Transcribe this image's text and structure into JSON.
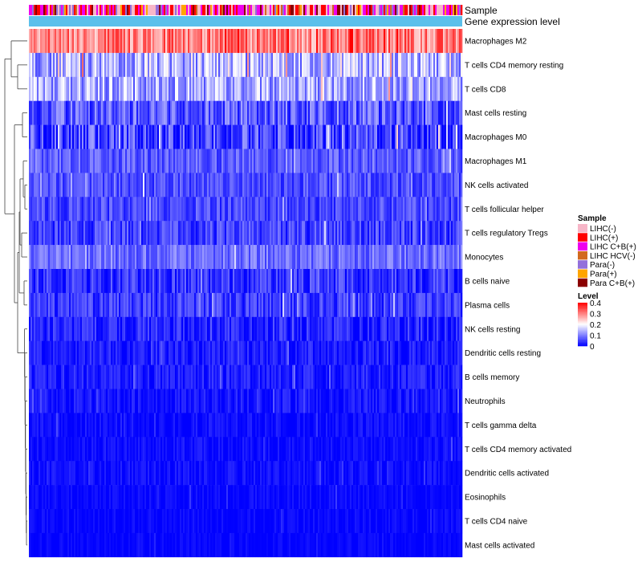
{
  "chart_data": {
    "type": "heatmap",
    "title": "",
    "annotation_tracks": [
      "Sample",
      "Gene expression level"
    ],
    "rows": [
      {
        "name": "Macrophages M2",
        "mean": 0.3,
        "spread": 0.07
      },
      {
        "name": "T cells CD4 memory resting",
        "mean": 0.14,
        "spread": 0.08
      },
      {
        "name": "T cells CD8",
        "mean": 0.13,
        "spread": 0.07
      },
      {
        "name": "Mast cells resting",
        "mean": 0.07,
        "spread": 0.06
      },
      {
        "name": "Macrophages M0",
        "mean": 0.05,
        "spread": 0.07
      },
      {
        "name": "Macrophages M1",
        "mean": 0.07,
        "spread": 0.04
      },
      {
        "name": "NK cells activated",
        "mean": 0.06,
        "spread": 0.04
      },
      {
        "name": "T cells follicular helper",
        "mean": 0.055,
        "spread": 0.04
      },
      {
        "name": "T cells regulatory  Tregs",
        "mean": 0.05,
        "spread": 0.045
      },
      {
        "name": "Monocytes",
        "mean": 0.085,
        "spread": 0.04
      },
      {
        "name": "B cells naive",
        "mean": 0.04,
        "spread": 0.045
      },
      {
        "name": "Plasma cells",
        "mean": 0.045,
        "spread": 0.04
      },
      {
        "name": "NK cells resting",
        "mean": 0.025,
        "spread": 0.04
      },
      {
        "name": "Dendritic cells resting",
        "mean": 0.02,
        "spread": 0.03
      },
      {
        "name": "B cells memory",
        "mean": 0.02,
        "spread": 0.03
      },
      {
        "name": "Neutrophils",
        "mean": 0.015,
        "spread": 0.025
      },
      {
        "name": "T cells gamma delta",
        "mean": 0.01,
        "spread": 0.02
      },
      {
        "name": "T cells CD4 memory activated",
        "mean": 0.008,
        "spread": 0.02
      },
      {
        "name": "Dendritic cells activated",
        "mean": 0.01,
        "spread": 0.02
      },
      {
        "name": "Eosinophils",
        "mean": 0.006,
        "spread": 0.015
      },
      {
        "name": "T cells CD4 naive",
        "mean": 0.005,
        "spread": 0.015
      },
      {
        "name": "Mast cells activated",
        "mean": 0.004,
        "spread": 0.012
      }
    ],
    "color_scale": {
      "title": "Level",
      "min": 0,
      "max": 0.4,
      "stops": [
        {
          "value": 0,
          "color": "#0000ff"
        },
        {
          "value": 0.2,
          "color": "#ffffff"
        },
        {
          "value": 0.4,
          "color": "#ff0000"
        }
      ],
      "tick_labels": [
        "0.4",
        "0.3",
        "0.2",
        "0.1",
        "0"
      ]
    },
    "sample_legend": {
      "title": "Sample",
      "entries": [
        {
          "label": "LIHC(-)",
          "color": "#f7b6c8"
        },
        {
          "label": "LIHC(+)",
          "color": "#ff0000"
        },
        {
          "label": "LIHC C+B(+)",
          "color": "#ee00ee"
        },
        {
          "label": "LIHC HCV(-)",
          "color": "#d2691e"
        },
        {
          "label": "Para(-)",
          "color": "#9370db"
        },
        {
          "label": "Para(+)",
          "color": "#ffa500"
        },
        {
          "label": "Para C+B(+)",
          "color": "#8b0000"
        }
      ]
    },
    "gene_expression_color": "#5bc0eb",
    "legend_position": "right"
  }
}
